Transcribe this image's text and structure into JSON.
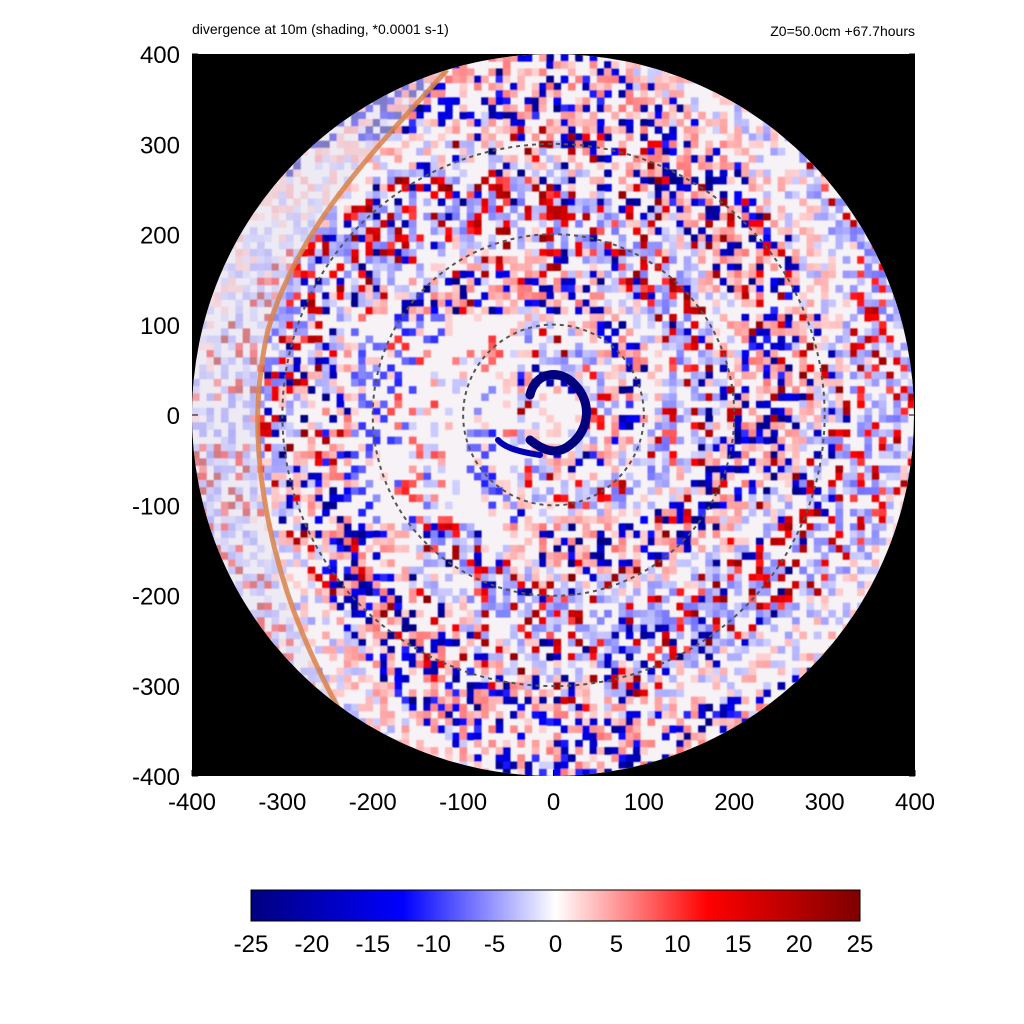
{
  "chart_data": {
    "type": "heatmap",
    "title": "divergence at 10m (shading, *0.0001 s-1)",
    "subtitle": "Z0=50.0cm  +67.7hours",
    "xlim": [
      -400,
      400
    ],
    "ylim": [
      -400,
      400
    ],
    "x_ticks": [
      "-400",
      "-300",
      "-200",
      "-100",
      "0",
      "100",
      "200",
      "300",
      "400"
    ],
    "y_ticks": [
      "400",
      "300",
      "200",
      "100",
      "0",
      "-100",
      "-200",
      "-300",
      "-400"
    ],
    "domain_radius": 400,
    "reference_circles_radius": [
      100,
      200,
      300
    ],
    "masked_region_color": "#000000",
    "colorbar": {
      "min": -25,
      "max": 25,
      "ticks": [
        "-25",
        "-20",
        "-15",
        "-10",
        "-5",
        "0",
        "5",
        "10",
        "15",
        "20",
        "25"
      ],
      "colors": [
        "#00007f",
        "#0000ff",
        "#ffffff",
        "#ff0000",
        "#7f0000"
      ]
    },
    "front_line_color": "#d9824a",
    "features": {
      "eye_wall_convergence_min": -25,
      "rainband_extremes": [
        -25,
        25
      ]
    }
  }
}
